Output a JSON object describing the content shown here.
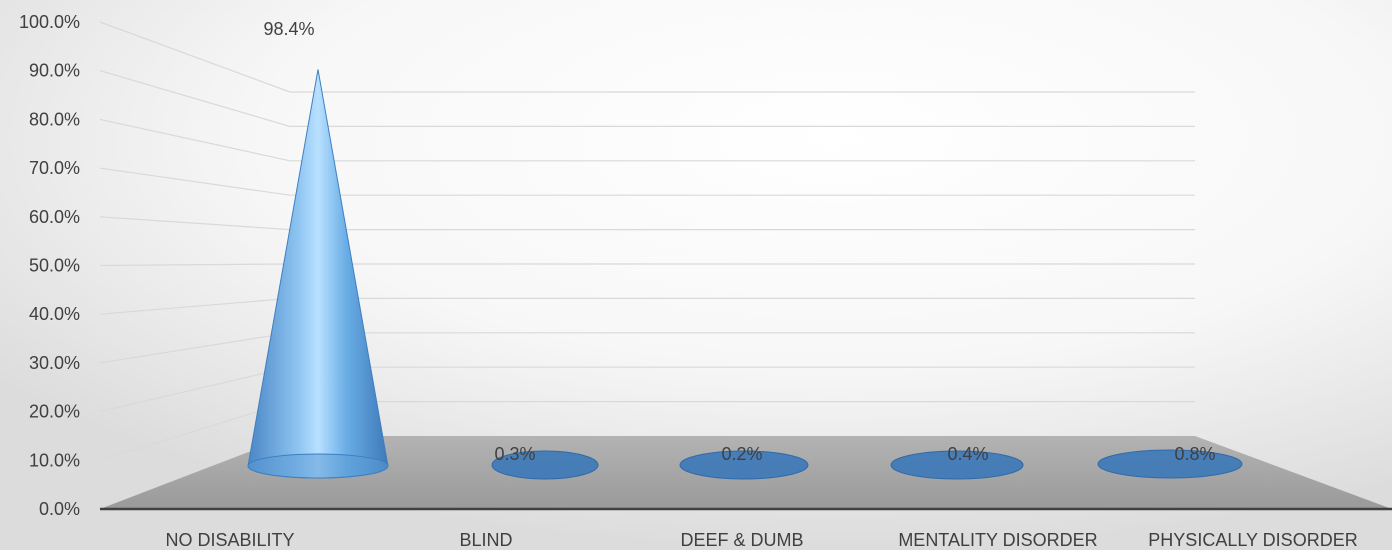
{
  "chart_data": {
    "type": "bar",
    "shape": "cone-3d",
    "categories": [
      "NO DISABILITY",
      "BLIND",
      "DEEF & DUMB",
      "MENTALITY DISORDER",
      "PHYSICALLY DISORDER"
    ],
    "values": [
      98.4,
      0.3,
      0.2,
      0.4,
      0.8
    ],
    "data_labels": [
      "98.4%",
      "0.3%",
      "0.2%",
      "0.4%",
      "0.8%"
    ],
    "y_ticks": [
      "0.0%",
      "10.0%",
      "20.0%",
      "30.0%",
      "40.0%",
      "50.0%",
      "60.0%",
      "70.0%",
      "80.0%",
      "90.0%",
      "100.0%"
    ],
    "ylim": [
      0,
      100
    ],
    "grid": true,
    "legend": "none",
    "colors": {
      "series": "#5B9BD5",
      "floor": "#A6A6A6",
      "gridline": "#D9D9D9",
      "axis": "#404040"
    }
  }
}
